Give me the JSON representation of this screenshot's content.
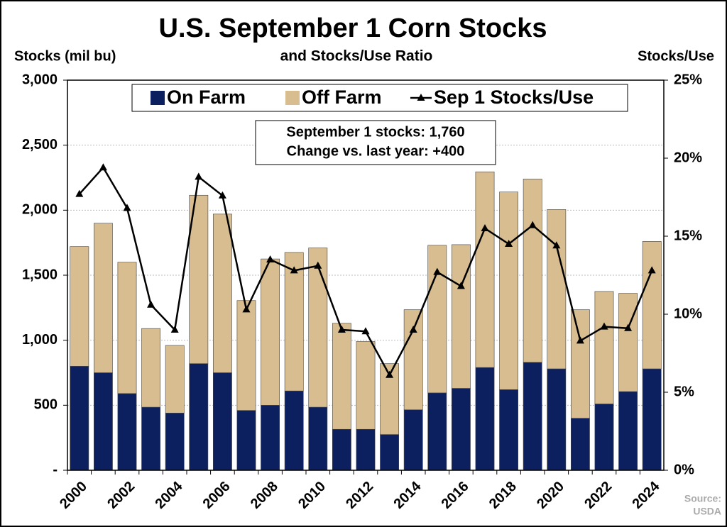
{
  "chart_data": {
    "type": "bar",
    "title": "U.S. September 1 Corn Stocks",
    "subtitle": "and Stocks/Use Ratio",
    "y_label": "Stocks (mil bu)",
    "y2_label": "Stocks/Use",
    "annotation": [
      "September 1 stocks: 1,760",
      "Change vs. last year: +400"
    ],
    "source": [
      "Source:",
      "USDA"
    ],
    "stacked": true,
    "grid": true,
    "legend": "top",
    "categories": [
      "2000",
      null,
      "2002",
      null,
      "2004",
      null,
      "2006",
      null,
      "2008",
      null,
      "2010",
      null,
      "2012",
      null,
      "2014",
      null,
      "2016",
      null,
      "2018",
      null,
      "2020",
      null,
      "2022",
      null,
      "2024"
    ],
    "series": [
      {
        "name": "On Farm",
        "color": "#0c1f5e",
        "values": [
          800,
          750,
          590,
          485,
          440,
          820,
          750,
          460,
          500,
          610,
          485,
          315,
          315,
          275,
          465,
          595,
          630,
          790,
          620,
          830,
          780,
          400,
          510,
          605,
          780
        ]
      },
      {
        "name": "Off Farm",
        "color": "#d7bd8f",
        "values": [
          920,
          1150,
          1010,
          605,
          520,
          1295,
          1220,
          845,
          1125,
          1065,
          1225,
          815,
          675,
          545,
          770,
          1135,
          1105,
          1505,
          1520,
          1410,
          1225,
          835,
          865,
          755,
          980
        ]
      },
      {
        "name": "Sep 1 Stocks/Use",
        "color": "#000000",
        "type": "line",
        "axis": "y2",
        "values": [
          17.7,
          19.4,
          16.8,
          10.6,
          9.0,
          18.8,
          17.6,
          10.3,
          13.5,
          12.8,
          13.1,
          9.0,
          8.9,
          6.1,
          9.0,
          12.7,
          11.8,
          15.5,
          14.5,
          15.7,
          14.4,
          8.3,
          9.2,
          9.1,
          12.8
        ]
      }
    ],
    "ylim": [
      0,
      3000
    ],
    "yticks": [
      {
        "value": 0,
        "label": "-"
      },
      500,
      {
        "value": 1000,
        "label": "1,000"
      },
      {
        "value": 1500,
        "label": "1,500"
      },
      {
        "value": 2000,
        "label": "2,000"
      },
      {
        "value": 2500,
        "label": "2,500"
      },
      {
        "value": 3000,
        "label": "3,000"
      }
    ],
    "y2lim": [
      0,
      25
    ],
    "y2ticks": [
      {
        "value": 0,
        "label": "0%"
      },
      {
        "value": 5,
        "label": "5%"
      },
      {
        "value": 10,
        "label": "10%"
      },
      {
        "value": 15,
        "label": "15%"
      },
      {
        "value": 20,
        "label": "20%"
      },
      {
        "value": 25,
        "label": "25%"
      }
    ]
  }
}
